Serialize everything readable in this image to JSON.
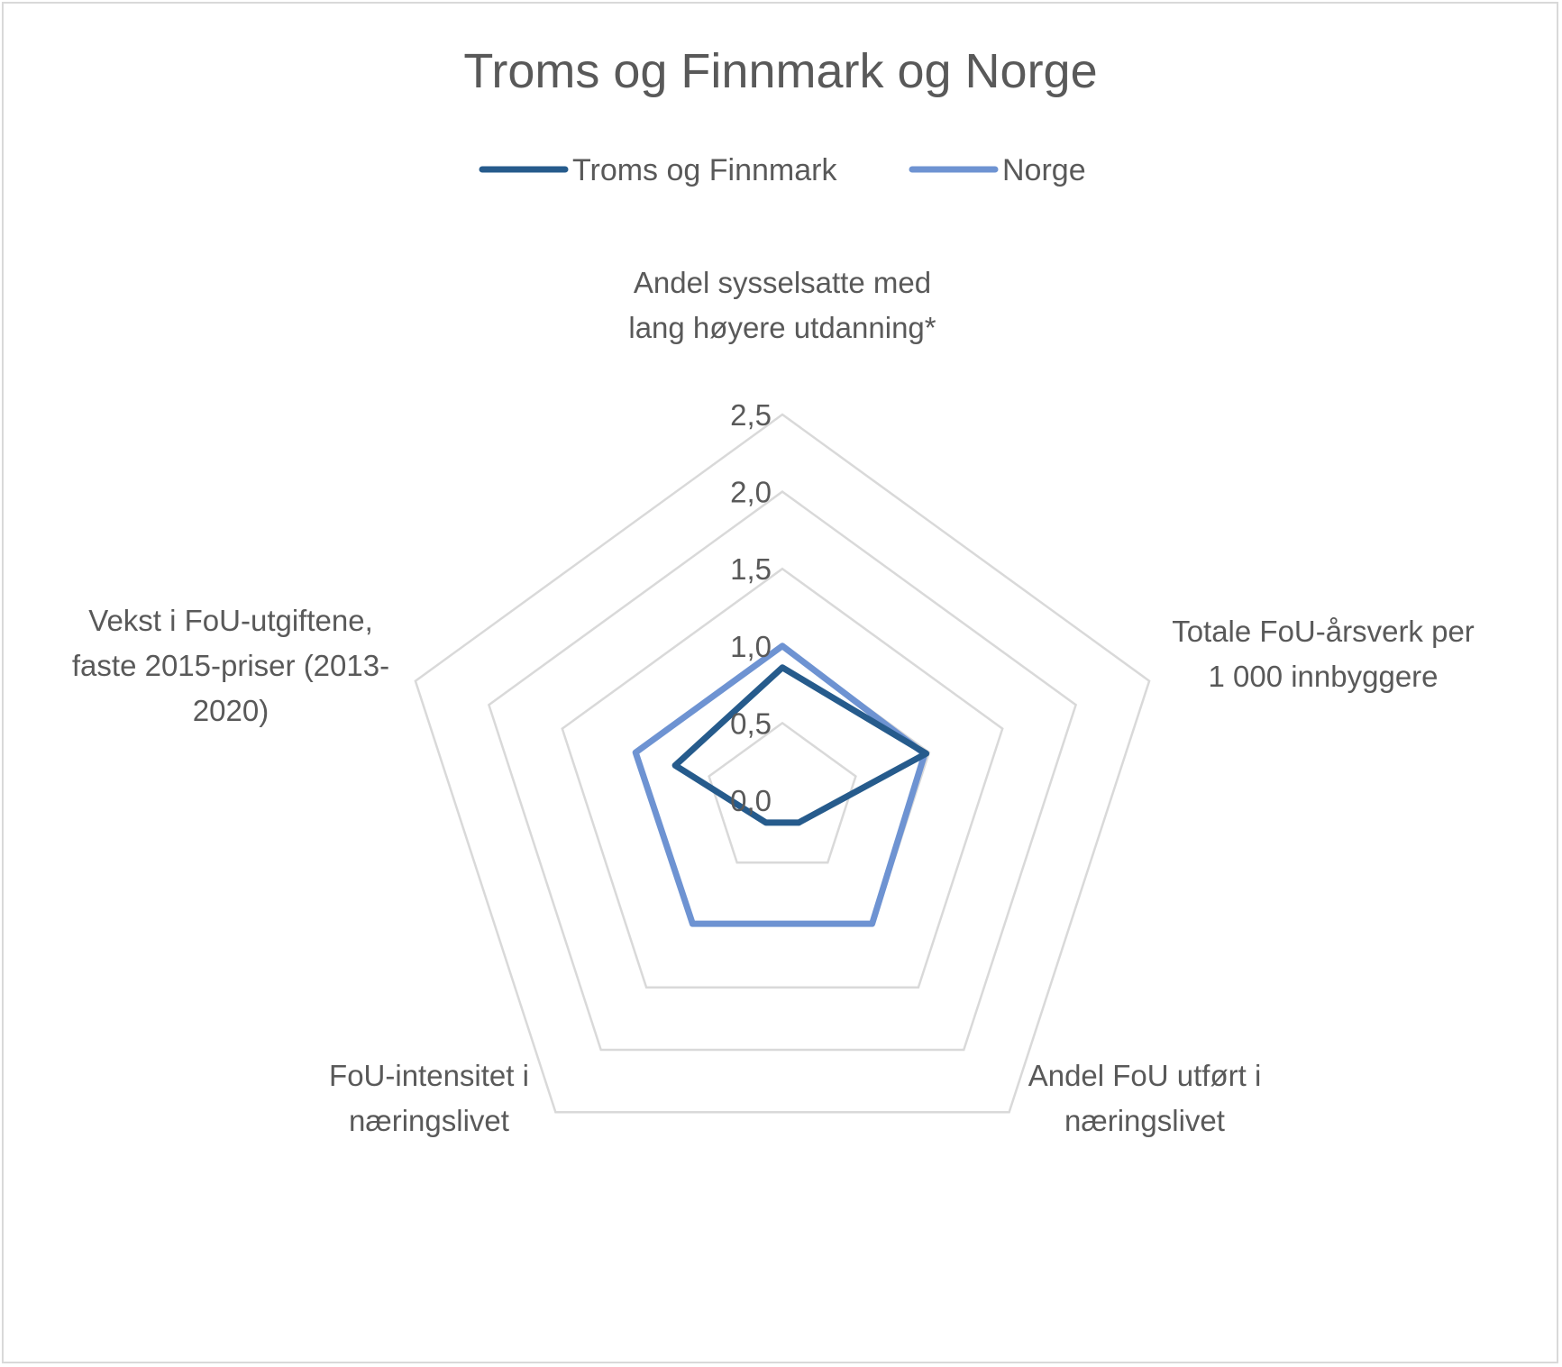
{
  "chart_data": {
    "type": "radar",
    "title": "Troms og Finnmark og Norge",
    "axes": [
      [
        "Andel sysselsatte med",
        "lang høyere utdanning*"
      ],
      [
        "Totale FoU-årsverk per",
        "1 000 innbyggere"
      ],
      [
        "Andel FoU utført i",
        "næringslivet"
      ],
      [
        "FoU-intensitet i",
        "næringslivet"
      ],
      [
        "Vekst i FoU-utgiftene,",
        "faste 2015-priser (2013-",
        "2020)"
      ]
    ],
    "ticks": [
      "0,0",
      "0,5",
      "1,0",
      "1,5",
      "2,0",
      "2,5"
    ],
    "tick_values": [
      0,
      0.5,
      1.0,
      1.5,
      2.0,
      2.5
    ],
    "range": [
      0,
      2.5
    ],
    "legend_position": "top",
    "series": [
      {
        "name": "Troms og Finnmark",
        "color": "#265b8c",
        "values": [
          0.86,
          0.98,
          0.18,
          0.18,
          0.73
        ]
      },
      {
        "name": "Norge",
        "color": "#6e93d2",
        "values": [
          1.0,
          0.97,
          0.99,
          0.99,
          1.0
        ]
      }
    ],
    "grid_color": "#d9d9d9"
  }
}
